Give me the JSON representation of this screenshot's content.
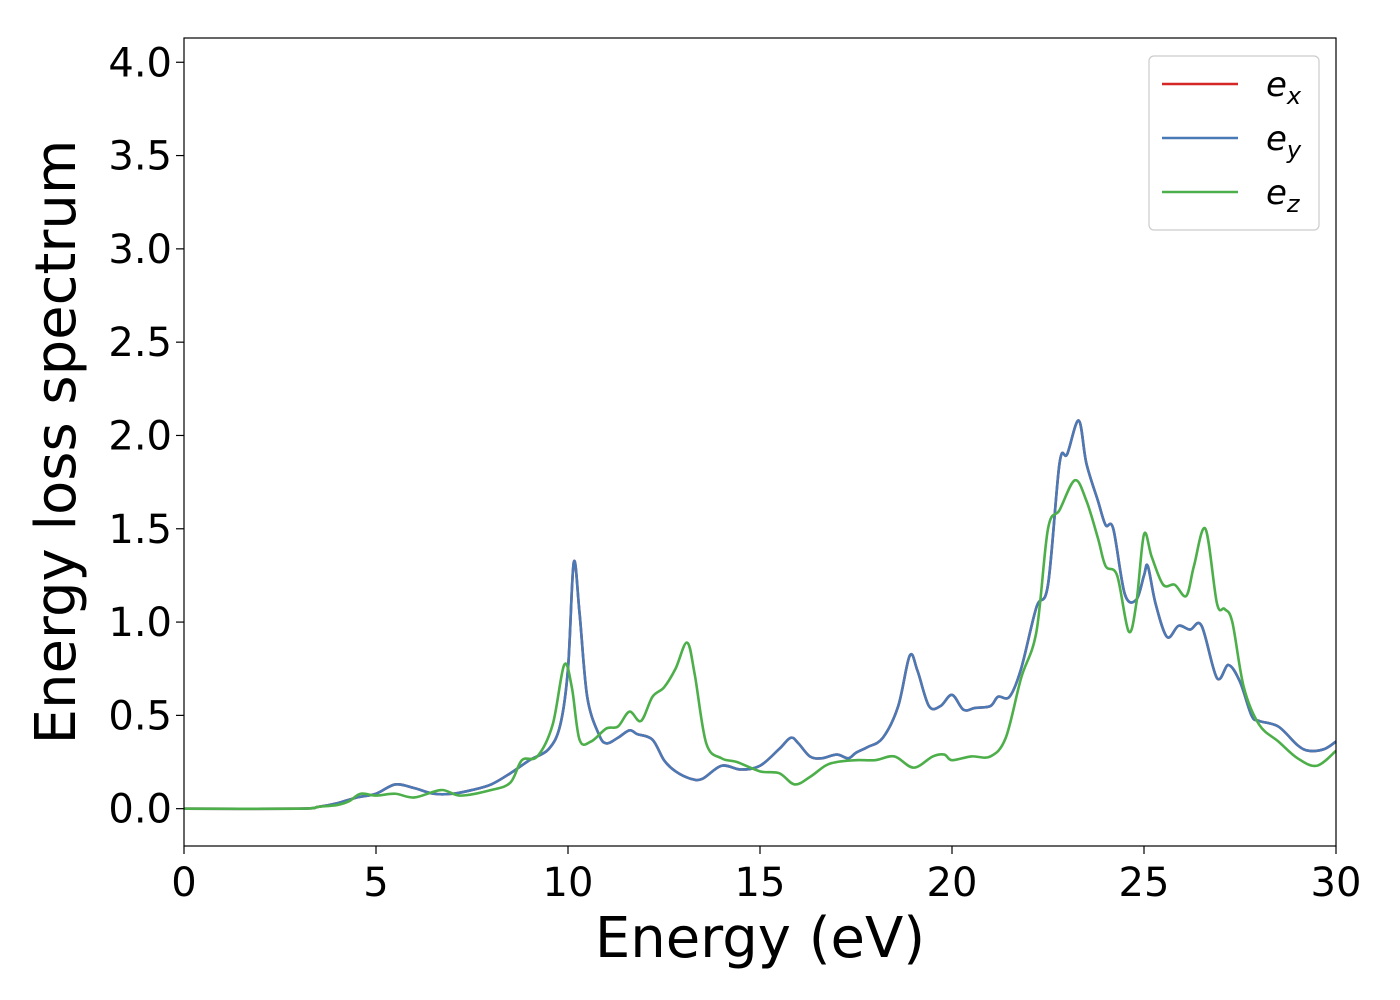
{
  "chart_data": {
    "type": "line",
    "title": "",
    "xlabel": "Energy (eV)",
    "ylabel": "Energy loss spectrum",
    "xlim": [
      0,
      30
    ],
    "ylim": [
      -0.2,
      4.13
    ],
    "xticks": [
      0,
      5,
      10,
      15,
      20,
      25,
      30
    ],
    "xtick_labels": [
      "0",
      "5",
      "10",
      "15",
      "20",
      "25",
      "30"
    ],
    "yticks": [
      0.0,
      0.5,
      1.0,
      1.5,
      2.0,
      2.5,
      3.0,
      3.5,
      4.0
    ],
    "ytick_labels": [
      "0.0",
      "0.5",
      "1.0",
      "1.5",
      "2.0",
      "2.5",
      "3.0",
      "3.5",
      "4.0"
    ],
    "grid": false,
    "legend": {
      "position": "top-right",
      "entries": [
        {
          "base": "e",
          "sub": "x",
          "color": "#d62728"
        },
        {
          "base": "e",
          "sub": "y",
          "color": "#4a7ab5"
        },
        {
          "base": "e",
          "sub": "z",
          "color": "#4daf4a"
        }
      ]
    },
    "series": [
      {
        "key": "ex",
        "color": "#d62728",
        "x": [
          0,
          3,
          3.5,
          4,
          4.5,
          5,
          5.5,
          6,
          6.5,
          7,
          7.5,
          8,
          8.5,
          9,
          9.5,
          9.8,
          10,
          10.15,
          10.3,
          10.5,
          10.8,
          11,
          11.3,
          11.6,
          11.8,
          12.2,
          12.5,
          12.8,
          13.2,
          13.5,
          14,
          14.5,
          15,
          15.5,
          15.8,
          16,
          16.3,
          16.6,
          17,
          17.3,
          17.5,
          17.8,
          18.2,
          18.6,
          18.9,
          19.1,
          19.4,
          19.7,
          20,
          20.3,
          20.6,
          21,
          21.2,
          21.5,
          21.8,
          22.2,
          22.5,
          22.8,
          23,
          23.3,
          23.5,
          23.8,
          24,
          24.2,
          24.5,
          24.8,
          25,
          25.1,
          25.3,
          25.6,
          25.9,
          26.2,
          26.5,
          26.9,
          27.2,
          27.5,
          27.8,
          28,
          28.5,
          29,
          29.3,
          29.7,
          30
        ],
        "y": [
          0,
          0,
          0.01,
          0.03,
          0.06,
          0.08,
          0.13,
          0.11,
          0.08,
          0.08,
          0.1,
          0.13,
          0.19,
          0.26,
          0.32,
          0.45,
          0.75,
          1.32,
          1.05,
          0.6,
          0.4,
          0.35,
          0.38,
          0.42,
          0.4,
          0.37,
          0.26,
          0.2,
          0.16,
          0.16,
          0.23,
          0.21,
          0.23,
          0.32,
          0.38,
          0.35,
          0.28,
          0.27,
          0.29,
          0.27,
          0.3,
          0.33,
          0.38,
          0.55,
          0.82,
          0.74,
          0.55,
          0.55,
          0.61,
          0.53,
          0.54,
          0.55,
          0.6,
          0.6,
          0.75,
          1.08,
          1.2,
          1.85,
          1.9,
          2.08,
          1.85,
          1.65,
          1.52,
          1.5,
          1.15,
          1.12,
          1.25,
          1.3,
          1.1,
          0.92,
          0.98,
          0.96,
          0.98,
          0.7,
          0.77,
          0.68,
          0.5,
          0.47,
          0.44,
          0.34,
          0.31,
          0.32,
          0.36
        ]
      },
      {
        "key": "ey",
        "color": "#4a7ab5",
        "x": [
          0,
          3,
          3.5,
          4,
          4.5,
          5,
          5.5,
          6,
          6.5,
          7,
          7.5,
          8,
          8.5,
          9,
          9.5,
          9.8,
          10,
          10.15,
          10.3,
          10.5,
          10.8,
          11,
          11.3,
          11.6,
          11.8,
          12.2,
          12.5,
          12.8,
          13.2,
          13.5,
          14,
          14.5,
          15,
          15.5,
          15.8,
          16,
          16.3,
          16.6,
          17,
          17.3,
          17.5,
          17.8,
          18.2,
          18.6,
          18.9,
          19.1,
          19.4,
          19.7,
          20,
          20.3,
          20.6,
          21,
          21.2,
          21.5,
          21.8,
          22.2,
          22.5,
          22.8,
          23,
          23.3,
          23.5,
          23.8,
          24,
          24.2,
          24.5,
          24.8,
          25,
          25.1,
          25.3,
          25.6,
          25.9,
          26.2,
          26.5,
          26.9,
          27.2,
          27.5,
          27.8,
          28,
          28.5,
          29,
          29.3,
          29.7,
          30
        ],
        "y": [
          0,
          0,
          0.01,
          0.03,
          0.06,
          0.08,
          0.13,
          0.11,
          0.08,
          0.08,
          0.1,
          0.13,
          0.19,
          0.26,
          0.32,
          0.45,
          0.75,
          1.32,
          1.05,
          0.6,
          0.4,
          0.35,
          0.38,
          0.42,
          0.4,
          0.37,
          0.26,
          0.2,
          0.16,
          0.16,
          0.23,
          0.21,
          0.23,
          0.32,
          0.38,
          0.35,
          0.28,
          0.27,
          0.29,
          0.27,
          0.3,
          0.33,
          0.38,
          0.55,
          0.82,
          0.74,
          0.55,
          0.55,
          0.61,
          0.53,
          0.54,
          0.55,
          0.6,
          0.6,
          0.75,
          1.08,
          1.2,
          1.85,
          1.9,
          2.08,
          1.85,
          1.65,
          1.52,
          1.5,
          1.15,
          1.12,
          1.25,
          1.3,
          1.1,
          0.92,
          0.98,
          0.96,
          0.98,
          0.7,
          0.77,
          0.68,
          0.5,
          0.47,
          0.44,
          0.34,
          0.31,
          0.32,
          0.36
        ]
      },
      {
        "key": "ez",
        "color": "#4daf4a",
        "x": [
          0,
          3,
          3.5,
          4,
          4.3,
          4.6,
          5,
          5.5,
          6,
          6.7,
          7.2,
          8,
          8.5,
          8.8,
          9.2,
          9.6,
          9.9,
          10.1,
          10.3,
          10.6,
          11,
          11.3,
          11.6,
          11.9,
          12.2,
          12.5,
          12.8,
          13.1,
          13.3,
          13.6,
          14,
          14.4,
          15,
          15.5,
          15.9,
          16.3,
          16.7,
          17,
          17.5,
          18,
          18.5,
          19,
          19.5,
          19.8,
          20,
          20.5,
          21,
          21.4,
          21.8,
          22.2,
          22.5,
          22.8,
          23.2,
          23.5,
          23.8,
          24,
          24.3,
          24.6,
          24.8,
          25,
          25.2,
          25.5,
          25.8,
          26.1,
          26.3,
          26.6,
          26.9,
          27.1,
          27.3,
          27.6,
          28,
          28.5,
          29,
          29.5,
          30
        ],
        "y": [
          0,
          0,
          0.01,
          0.02,
          0.04,
          0.08,
          0.07,
          0.08,
          0.06,
          0.1,
          0.07,
          0.1,
          0.14,
          0.26,
          0.28,
          0.45,
          0.77,
          0.65,
          0.37,
          0.36,
          0.43,
          0.44,
          0.52,
          0.47,
          0.6,
          0.65,
          0.75,
          0.89,
          0.72,
          0.35,
          0.27,
          0.25,
          0.2,
          0.19,
          0.13,
          0.17,
          0.23,
          0.25,
          0.26,
          0.26,
          0.28,
          0.22,
          0.28,
          0.29,
          0.26,
          0.28,
          0.28,
          0.38,
          0.7,
          0.95,
          1.5,
          1.6,
          1.76,
          1.65,
          1.45,
          1.3,
          1.25,
          0.95,
          1.1,
          1.47,
          1.35,
          1.2,
          1.2,
          1.14,
          1.3,
          1.5,
          1.1,
          1.07,
          1.0,
          0.65,
          0.45,
          0.36,
          0.27,
          0.23,
          0.31
        ]
      }
    ]
  }
}
